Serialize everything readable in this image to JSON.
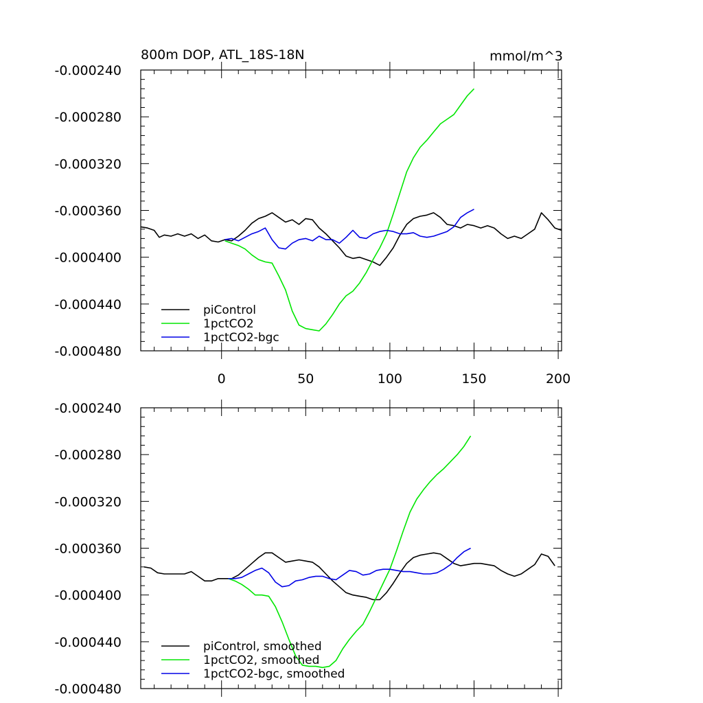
{
  "colors": {
    "piControl": "#000000",
    "1pctCO2": "#00e600",
    "1pctCO2-bgc": "#0000e6"
  },
  "chart_data": [
    {
      "type": "line",
      "title": "800m DOP, ATL_18S-18N",
      "units": "mmol/m^3",
      "xlim": [
        -48,
        202
      ],
      "ylim": [
        -0.00048,
        -0.00024
      ],
      "yticks": [
        -0.00024,
        -0.00028,
        -0.00032,
        -0.00036,
        -0.0004,
        -0.00044,
        -0.00048
      ],
      "ytick_labels": [
        "-0.000240",
        "-0.000280",
        "-0.000320",
        "-0.000360",
        "-0.000400",
        "-0.000440",
        "-0.000480"
      ],
      "xticks": [
        0,
        50,
        100,
        150,
        200
      ],
      "xtick_labels": [
        "0",
        "50",
        "100",
        "150",
        "200"
      ],
      "legend": [
        "piControl",
        "1pctCO2",
        "1pctCO2-bgc"
      ],
      "series": [
        {
          "name": "piControl",
          "x": [
            -48,
            -44,
            -40,
            -37,
            -34,
            -30,
            -26,
            -22,
            -18,
            -14,
            -10,
            -6,
            -2,
            2,
            6,
            10,
            14,
            18,
            22,
            26,
            30,
            34,
            38,
            42,
            46,
            50,
            54,
            58,
            62,
            66,
            70,
            74,
            78,
            82,
            86,
            90,
            94,
            98,
            102,
            106,
            110,
            114,
            118,
            122,
            126,
            130,
            134,
            138,
            142,
            146,
            150,
            154,
            158,
            162,
            166,
            170,
            174,
            178,
            182,
            186,
            190,
            194,
            198,
            202
          ],
          "values": [
            -0.000374,
            -0.000375,
            -0.000377,
            -0.000383,
            -0.000381,
            -0.000382,
            -0.00038,
            -0.000382,
            -0.00038,
            -0.000384,
            -0.000381,
            -0.000386,
            -0.000387,
            -0.000385,
            -0.000386,
            -0.000382,
            -0.000377,
            -0.000371,
            -0.000367,
            -0.000365,
            -0.000362,
            -0.000366,
            -0.00037,
            -0.000368,
            -0.000372,
            -0.000367,
            -0.000368,
            -0.000375,
            -0.00038,
            -0.000386,
            -0.000392,
            -0.000399,
            -0.000401,
            -0.0004,
            -0.000402,
            -0.000404,
            -0.000407,
            -0.0004,
            -0.000392,
            -0.000381,
            -0.000372,
            -0.000367,
            -0.000365,
            -0.000364,
            -0.000362,
            -0.000366,
            -0.000372,
            -0.000373,
            -0.000375,
            -0.000372,
            -0.000373,
            -0.000375,
            -0.000373,
            -0.000375,
            -0.00038,
            -0.000384,
            -0.000382,
            -0.000384,
            -0.00038,
            -0.000376,
            -0.000362,
            -0.000368,
            -0.000375,
            -0.000377
          ]
        },
        {
          "name": "1pctCO2",
          "x": [
            2,
            6,
            10,
            14,
            18,
            22,
            26,
            30,
            34,
            38,
            42,
            46,
            50,
            54,
            58,
            62,
            66,
            70,
            74,
            78,
            82,
            86,
            90,
            94,
            98,
            102,
            106,
            110,
            114,
            118,
            122,
            126,
            130,
            134,
            138,
            142,
            146,
            150
          ],
          "values": [
            -0.000386,
            -0.000388,
            -0.00039,
            -0.000393,
            -0.000398,
            -0.000402,
            -0.000404,
            -0.000405,
            -0.000416,
            -0.000428,
            -0.000446,
            -0.000458,
            -0.000461,
            -0.000462,
            -0.000463,
            -0.000457,
            -0.000449,
            -0.00044,
            -0.000433,
            -0.000429,
            -0.000422,
            -0.000413,
            -0.000402,
            -0.000392,
            -0.00038,
            -0.000363,
            -0.000345,
            -0.000327,
            -0.000315,
            -0.000306,
            -0.0003,
            -0.000293,
            -0.000286,
            -0.000282,
            -0.000278,
            -0.00027,
            -0.000262,
            -0.000256
          ]
        },
        {
          "name": "1pctCO2-bgc",
          "x": [
            2,
            6,
            10,
            14,
            18,
            22,
            26,
            30,
            34,
            38,
            42,
            46,
            50,
            54,
            58,
            62,
            66,
            70,
            74,
            78,
            82,
            86,
            90,
            94,
            98,
            102,
            106,
            110,
            114,
            118,
            122,
            126,
            130,
            134,
            138,
            142,
            146,
            150
          ],
          "values": [
            -0.000385,
            -0.000384,
            -0.000386,
            -0.000383,
            -0.00038,
            -0.000378,
            -0.000375,
            -0.000385,
            -0.000392,
            -0.000393,
            -0.000388,
            -0.000385,
            -0.000384,
            -0.000386,
            -0.000382,
            -0.000385,
            -0.000385,
            -0.000388,
            -0.000383,
            -0.000377,
            -0.000383,
            -0.000384,
            -0.00038,
            -0.000378,
            -0.000377,
            -0.000378,
            -0.00038,
            -0.00038,
            -0.000379,
            -0.000382,
            -0.000383,
            -0.000382,
            -0.00038,
            -0.000378,
            -0.000374,
            -0.000366,
            -0.000362,
            -0.000359
          ]
        }
      ]
    },
    {
      "type": "line",
      "xlim": [
        -48,
        202
      ],
      "ylim": [
        -0.00048,
        -0.00024
      ],
      "yticks": [
        -0.00024,
        -0.00028,
        -0.00032,
        -0.00036,
        -0.0004,
        -0.00044,
        -0.00048
      ],
      "ytick_labels": [
        "-0.000240",
        "-0.000280",
        "-0.000320",
        "-0.000360",
        "-0.000400",
        "-0.000440",
        "-0.000480"
      ],
      "xticks": [
        0,
        50,
        100,
        150,
        200
      ],
      "legend": [
        "piControl, smoothed",
        "1pctCO2, smoothed",
        "1pctCO2-bgc, smoothed"
      ],
      "series": [
        {
          "name": "piControl, smoothed",
          "x": [
            -46,
            -42,
            -38,
            -34,
            -30,
            -26,
            -22,
            -18,
            -14,
            -10,
            -6,
            -2,
            2,
            6,
            10,
            14,
            18,
            22,
            26,
            30,
            34,
            38,
            42,
            46,
            50,
            54,
            58,
            62,
            66,
            70,
            74,
            78,
            82,
            86,
            90,
            94,
            98,
            102,
            106,
            110,
            114,
            118,
            122,
            126,
            130,
            134,
            138,
            142,
            146,
            150,
            154,
            158,
            162,
            166,
            170,
            174,
            178,
            182,
            186,
            190,
            194,
            198
          ],
          "values": [
            -0.000376,
            -0.000377,
            -0.000381,
            -0.000382,
            -0.000382,
            -0.000382,
            -0.000382,
            -0.00038,
            -0.000384,
            -0.000388,
            -0.000388,
            -0.000386,
            -0.000386,
            -0.000386,
            -0.000383,
            -0.000378,
            -0.000373,
            -0.000368,
            -0.000364,
            -0.000364,
            -0.000368,
            -0.000372,
            -0.000371,
            -0.00037,
            -0.000371,
            -0.000372,
            -0.000376,
            -0.000382,
            -0.000388,
            -0.000393,
            -0.000398,
            -0.0004,
            -0.000401,
            -0.000402,
            -0.000404,
            -0.000404,
            -0.000398,
            -0.00039,
            -0.000381,
            -0.000373,
            -0.000368,
            -0.000366,
            -0.000365,
            -0.000364,
            -0.000365,
            -0.000369,
            -0.000373,
            -0.000375,
            -0.000374,
            -0.000373,
            -0.000373,
            -0.000374,
            -0.000375,
            -0.000379,
            -0.000382,
            -0.000384,
            -0.000382,
            -0.000378,
            -0.000374,
            -0.000365,
            -0.000367,
            -0.000375
          ]
        },
        {
          "name": "1pctCO2, smoothed",
          "x": [
            4,
            8,
            12,
            16,
            20,
            24,
            28,
            32,
            36,
            40,
            44,
            48,
            52,
            56,
            60,
            64,
            68,
            72,
            76,
            80,
            84,
            88,
            92,
            96,
            100,
            104,
            108,
            112,
            116,
            120,
            124,
            128,
            132,
            136,
            140,
            144,
            148
          ],
          "values": [
            -0.000386,
            -0.000388,
            -0.000391,
            -0.000395,
            -0.0004,
            -0.0004,
            -0.000401,
            -0.00041,
            -0.000423,
            -0.000438,
            -0.000452,
            -0.00046,
            -0.000461,
            -0.000461,
            -0.000462,
            -0.000461,
            -0.000456,
            -0.000446,
            -0.000438,
            -0.000431,
            -0.000425,
            -0.000414,
            -0.000402,
            -0.00039,
            -0.000378,
            -0.000362,
            -0.000345,
            -0.000329,
            -0.000318,
            -0.00031,
            -0.000303,
            -0.000297,
            -0.000292,
            -0.000286,
            -0.00028,
            -0.000273,
            -0.000264
          ]
        },
        {
          "name": "1pctCO2-bgc, smoothed",
          "x": [
            4,
            8,
            12,
            16,
            20,
            24,
            28,
            32,
            36,
            40,
            44,
            48,
            52,
            56,
            60,
            64,
            68,
            72,
            76,
            80,
            84,
            88,
            92,
            96,
            100,
            104,
            108,
            112,
            116,
            120,
            124,
            128,
            132,
            136,
            140,
            144,
            148
          ],
          "values": [
            -0.000386,
            -0.000386,
            -0.000385,
            -0.000382,
            -0.000379,
            -0.000377,
            -0.000381,
            -0.000389,
            -0.000393,
            -0.000392,
            -0.000388,
            -0.000387,
            -0.000385,
            -0.000384,
            -0.000384,
            -0.000386,
            -0.000387,
            -0.000383,
            -0.000379,
            -0.00038,
            -0.000383,
            -0.000382,
            -0.000379,
            -0.000378,
            -0.000378,
            -0.000379,
            -0.00038,
            -0.00038,
            -0.000381,
            -0.000382,
            -0.000382,
            -0.000381,
            -0.000378,
            -0.000374,
            -0.000368,
            -0.000363,
            -0.00036
          ]
        }
      ]
    }
  ]
}
